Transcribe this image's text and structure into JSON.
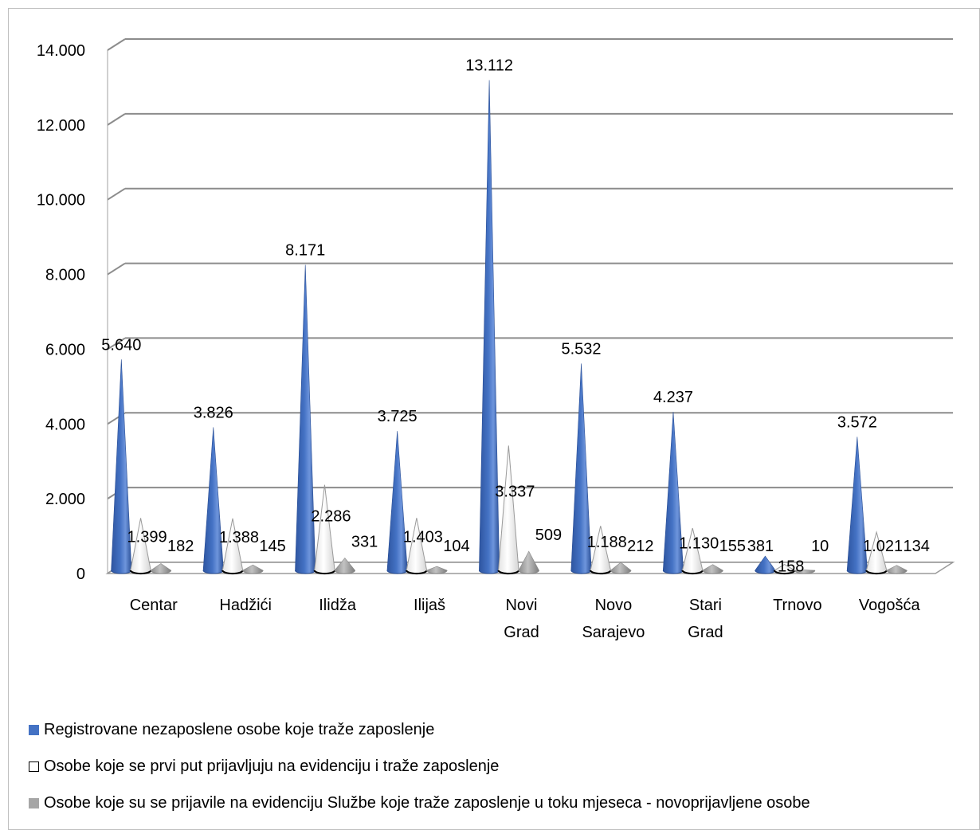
{
  "colors": {
    "series1": "#4472c4",
    "series2": "#ffffff",
    "series3": "#a6a6a6",
    "grid": "#8c8c8c"
  },
  "chart_data": {
    "type": "bar",
    "style": "3d-cone",
    "categories": [
      [
        "Centar"
      ],
      [
        "Hadžići"
      ],
      [
        "Ilidža"
      ],
      [
        "Ilijaš"
      ],
      [
        "Novi",
        "Grad"
      ],
      [
        "Novo",
        "Sarajevo"
      ],
      [
        "Stari",
        "Grad"
      ],
      [
        "Trnovo"
      ],
      [
        "Vogošća"
      ]
    ],
    "series": [
      {
        "name": "Registrovane nezaposlene osobe koje traže zaposlenje",
        "values": [
          5640,
          3826,
          8171,
          3725,
          13112,
          5532,
          4237,
          381,
          3572
        ],
        "labels": [
          "5.640",
          "3.826",
          "8.171",
          "3.725",
          "13.112",
          "5.532",
          "4.237",
          "381",
          "3.572"
        ]
      },
      {
        "name": "Osobe koje se prvi put prijavljuju na evidenciju i traže zaposlenje",
        "values": [
          1399,
          1388,
          2286,
          1403,
          3337,
          1188,
          1130,
          158,
          1021
        ],
        "labels": [
          "1.399",
          "1.388",
          "2.286",
          "1.403",
          "3.337",
          "1.188",
          "1.130",
          "158",
          "1.021"
        ]
      },
      {
        "name": "Osobe koje su se prijavile na evidenciju Službe koje traže zaposlenje u toku mjeseca - novoprijavljene osobe",
        "values": [
          182,
          145,
          331,
          104,
          509,
          212,
          155,
          10,
          134
        ],
        "labels": [
          "182",
          "145",
          "331",
          "104",
          "509",
          "212",
          "155",
          "10",
          "134"
        ]
      }
    ],
    "yticks": [
      "0",
      "2.000",
      "4.000",
      "6.000",
      "8.000",
      "10.000",
      "12.000",
      "14.000"
    ],
    "ylim": [
      0,
      14000
    ],
    "grid": true,
    "legend_position": "bottom"
  }
}
